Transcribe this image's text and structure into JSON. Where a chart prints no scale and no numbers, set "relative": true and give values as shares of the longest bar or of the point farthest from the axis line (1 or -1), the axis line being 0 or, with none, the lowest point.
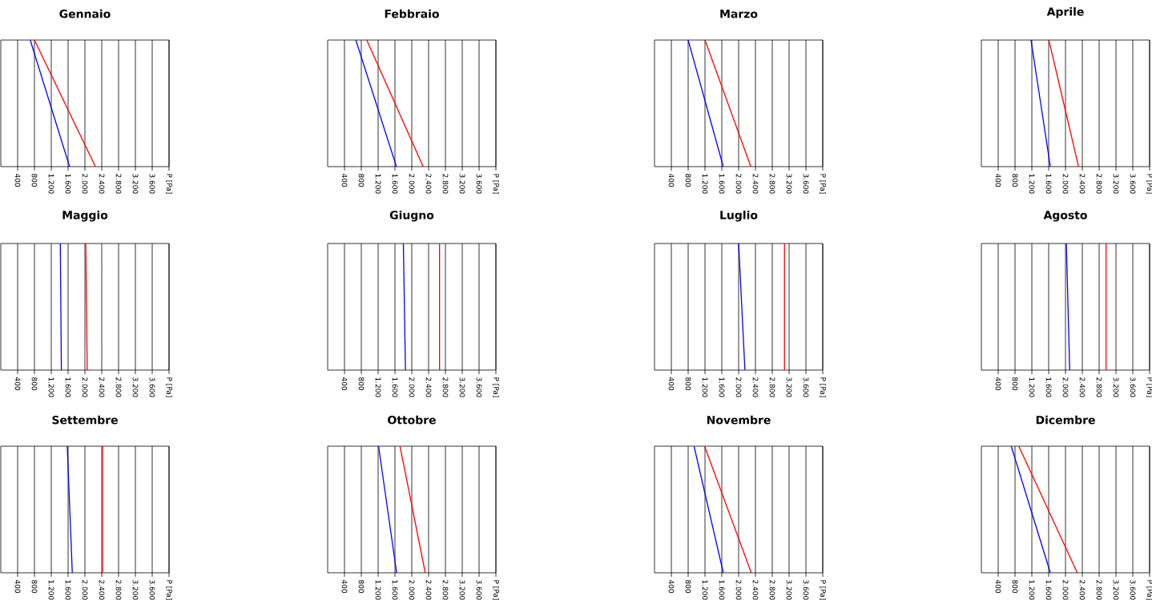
{
  "chart_data": [
    {
      "type": "line",
      "title": "Gennaio",
      "relative": true,
      "xlim": [
        0,
        4000
      ],
      "grid": "x",
      "tick_labels": "x",
      "xticks": [
        {
          "value": 400,
          "label": "400"
        },
        {
          "value": 800,
          "label": "800"
        },
        {
          "value": 1200,
          "label": "1.200"
        },
        {
          "value": 1600,
          "label": "1.600"
        },
        {
          "value": 2000,
          "label": "2.000"
        },
        {
          "value": 2400,
          "label": "2.400"
        },
        {
          "value": 2800,
          "label": "2.800"
        },
        {
          "value": 3200,
          "label": "3.200"
        },
        {
          "value": 3600,
          "label": "3.600"
        },
        {
          "value": 4000,
          "label": "P [Pa]"
        }
      ],
      "series": [
        {
          "color": "#0000ff",
          "x": [
            700,
            1635
          ],
          "values": [
            1,
            0
          ]
        },
        {
          "color": "#ff0000",
          "x": [
            800,
            2250
          ],
          "values": [
            1,
            0
          ]
        }
      ]
    },
    {
      "type": "line",
      "title": "Febbraio",
      "relative": true,
      "xlim": [
        0,
        4000
      ],
      "grid": "x",
      "tick_labels": "x",
      "xticks": [
        {
          "value": 400,
          "label": "400"
        },
        {
          "value": 800,
          "label": "800"
        },
        {
          "value": 1200,
          "label": "1.200"
        },
        {
          "value": 1600,
          "label": "1.600"
        },
        {
          "value": 2000,
          "label": "2.000"
        },
        {
          "value": 2400,
          "label": "2.400"
        },
        {
          "value": 2800,
          "label": "2.800"
        },
        {
          "value": 3200,
          "label": "3.200"
        },
        {
          "value": 3600,
          "label": "3.600"
        },
        {
          "value": 4000,
          "label": "P [Pa]"
        }
      ],
      "series": [
        {
          "color": "#0000ff",
          "x": [
            670,
            1635
          ],
          "values": [
            1,
            0
          ]
        },
        {
          "color": "#ff0000",
          "x": [
            930,
            2270
          ],
          "values": [
            1,
            0
          ]
        }
      ]
    },
    {
      "type": "line",
      "title": "Marzo",
      "relative": true,
      "xlim": [
        0,
        4000
      ],
      "grid": "x",
      "tick_labels": "x",
      "xticks": [
        {
          "value": 400,
          "label": "400"
        },
        {
          "value": 800,
          "label": "800"
        },
        {
          "value": 1200,
          "label": "1.200"
        },
        {
          "value": 1600,
          "label": "1.600"
        },
        {
          "value": 2000,
          "label": "2.000"
        },
        {
          "value": 2400,
          "label": "2.400"
        },
        {
          "value": 2800,
          "label": "2.800"
        },
        {
          "value": 3200,
          "label": "3.200"
        },
        {
          "value": 3600,
          "label": "3.600"
        },
        {
          "value": 4000,
          "label": "P [Pa]"
        }
      ],
      "series": [
        {
          "color": "#0000ff",
          "x": [
            800,
            1635
          ],
          "values": [
            1,
            0
          ]
        },
        {
          "color": "#ff0000",
          "x": [
            1200,
            2290
          ],
          "values": [
            1,
            0
          ]
        }
      ]
    },
    {
      "type": "line",
      "title": "Aprile",
      "relative": true,
      "xlim": [
        0,
        4000
      ],
      "grid": "x",
      "tick_labels": "x",
      "xticks": [
        {
          "value": 400,
          "label": "400"
        },
        {
          "value": 800,
          "label": "800"
        },
        {
          "value": 1200,
          "label": "1.200"
        },
        {
          "value": 1600,
          "label": "1.600"
        },
        {
          "value": 2000,
          "label": "2.000"
        },
        {
          "value": 2400,
          "label": "2.400"
        },
        {
          "value": 2800,
          "label": "2.800"
        },
        {
          "value": 3200,
          "label": "3.200"
        },
        {
          "value": 3600,
          "label": "3.600"
        },
        {
          "value": 4000,
          "label": "P [Pa]"
        }
      ],
      "series": [
        {
          "color": "#0000ff",
          "x": [
            1180,
            1640
          ],
          "values": [
            1,
            0
          ]
        },
        {
          "color": "#ff0000",
          "x": [
            1605,
            2310
          ],
          "values": [
            1,
            0
          ]
        }
      ]
    },
    {
      "type": "line",
      "title": "Maggio",
      "relative": true,
      "xlim": [
        0,
        4000
      ],
      "grid": "x",
      "tick_labels": "x",
      "xticks": [
        {
          "value": 400,
          "label": "400"
        },
        {
          "value": 800,
          "label": "800"
        },
        {
          "value": 1200,
          "label": "1.200"
        },
        {
          "value": 1600,
          "label": "1.600"
        },
        {
          "value": 2000,
          "label": "2.000"
        },
        {
          "value": 2400,
          "label": "2.400"
        },
        {
          "value": 2800,
          "label": "2.800"
        },
        {
          "value": 3200,
          "label": "3.200"
        },
        {
          "value": 3600,
          "label": "3.600"
        },
        {
          "value": 4000,
          "label": "P [Pa]"
        }
      ],
      "series": [
        {
          "color": "#0000ff",
          "x": [
            1415,
            1440
          ],
          "values": [
            1,
            0
          ]
        },
        {
          "color": "#ff0000",
          "x": [
            2020,
            2055
          ],
          "values": [
            1,
            0
          ]
        }
      ]
    },
    {
      "type": "line",
      "title": "Giugno",
      "relative": true,
      "xlim": [
        0,
        4000
      ],
      "grid": "x",
      "tick_labels": "x",
      "xticks": [
        {
          "value": 400,
          "label": "400"
        },
        {
          "value": 800,
          "label": "800"
        },
        {
          "value": 1200,
          "label": "1.200"
        },
        {
          "value": 1600,
          "label": "1.600"
        },
        {
          "value": 2000,
          "label": "2.000"
        },
        {
          "value": 2400,
          "label": "2.400"
        },
        {
          "value": 2800,
          "label": "2.800"
        },
        {
          "value": 3200,
          "label": "3.200"
        },
        {
          "value": 3600,
          "label": "3.600"
        },
        {
          "value": 4000,
          "label": "P [Pa]"
        }
      ],
      "series": [
        {
          "color": "#0000ff",
          "x": [
            1800,
            1850
          ],
          "values": [
            1,
            0
          ]
        },
        {
          "color": "#ff0000",
          "x": [
            2660,
            2660
          ],
          "values": [
            1,
            0
          ]
        }
      ]
    },
    {
      "type": "line",
      "title": "Luglio",
      "relative": true,
      "xlim": [
        0,
        4000
      ],
      "grid": "x",
      "tick_labels": "x",
      "xticks": [
        {
          "value": 400,
          "label": "400"
        },
        {
          "value": 800,
          "label": "800"
        },
        {
          "value": 1200,
          "label": "1.200"
        },
        {
          "value": 1600,
          "label": "1.600"
        },
        {
          "value": 2000,
          "label": "2.000"
        },
        {
          "value": 2400,
          "label": "2.400"
        },
        {
          "value": 2800,
          "label": "2.800"
        },
        {
          "value": 3200,
          "label": "3.200"
        },
        {
          "value": 3600,
          "label": "3.600"
        },
        {
          "value": 4000,
          "label": "P [Pa]"
        }
      ],
      "series": [
        {
          "color": "#0000ff",
          "x": [
            2000,
            2150
          ],
          "values": [
            1,
            0
          ]
        },
        {
          "color": "#ff0000",
          "x": [
            3090,
            3090
          ],
          "values": [
            1,
            0
          ]
        }
      ]
    },
    {
      "type": "line",
      "title": "Agosto",
      "relative": true,
      "xlim": [
        0,
        4000
      ],
      "grid": "x",
      "tick_labels": "x",
      "xticks": [
        {
          "value": 400,
          "label": "400"
        },
        {
          "value": 800,
          "label": "800"
        },
        {
          "value": 1200,
          "label": "1.200"
        },
        {
          "value": 1600,
          "label": "1.600"
        },
        {
          "value": 2000,
          "label": "2.000"
        },
        {
          "value": 2400,
          "label": "2.400"
        },
        {
          "value": 2800,
          "label": "2.800"
        },
        {
          "value": 3200,
          "label": "3.200"
        },
        {
          "value": 3600,
          "label": "3.600"
        },
        {
          "value": 4000,
          "label": "P [Pa]"
        }
      ],
      "series": [
        {
          "color": "#0000ff",
          "x": [
            2020,
            2100
          ],
          "values": [
            1,
            0
          ]
        },
        {
          "color": "#ff0000",
          "x": [
            2965,
            2965
          ],
          "values": [
            1,
            0
          ]
        }
      ]
    },
    {
      "type": "line",
      "title": "Settembre",
      "relative": true,
      "xlim": [
        0,
        4000
      ],
      "grid": "x",
      "tick_labels": "x",
      "xticks": [
        {
          "value": 400,
          "label": "400"
        },
        {
          "value": 800,
          "label": "800"
        },
        {
          "value": 1200,
          "label": "1.200"
        },
        {
          "value": 1600,
          "label": "1.600"
        },
        {
          "value": 2000,
          "label": "2.000"
        },
        {
          "value": 2400,
          "label": "2.400"
        },
        {
          "value": 2800,
          "label": "2.800"
        },
        {
          "value": 3200,
          "label": "3.200"
        },
        {
          "value": 3600,
          "label": "3.600"
        },
        {
          "value": 4000,
          "label": "P [Pa]"
        }
      ],
      "series": [
        {
          "color": "#0000ff",
          "x": [
            1580,
            1700
          ],
          "values": [
            1,
            0
          ]
        },
        {
          "color": "#ff0000",
          "x": [
            2420,
            2420
          ],
          "values": [
            1,
            0
          ]
        }
      ]
    },
    {
      "type": "line",
      "title": "Ottobre",
      "relative": true,
      "xlim": [
        0,
        4000
      ],
      "grid": "x",
      "tick_labels": "x",
      "xticks": [
        {
          "value": 400,
          "label": "400"
        },
        {
          "value": 800,
          "label": "800"
        },
        {
          "value": 1200,
          "label": "1.200"
        },
        {
          "value": 1600,
          "label": "1.600"
        },
        {
          "value": 2000,
          "label": "2.000"
        },
        {
          "value": 2400,
          "label": "2.400"
        },
        {
          "value": 2800,
          "label": "2.800"
        },
        {
          "value": 3200,
          "label": "3.200"
        },
        {
          "value": 3600,
          "label": "3.600"
        },
        {
          "value": 4000,
          "label": "P [Pa]"
        }
      ],
      "series": [
        {
          "color": "#0000ff",
          "x": [
            1210,
            1640
          ],
          "values": [
            1,
            0
          ]
        },
        {
          "color": "#ff0000",
          "x": [
            1720,
            2320
          ],
          "values": [
            1,
            0
          ]
        }
      ]
    },
    {
      "type": "line",
      "title": "Novembre",
      "relative": true,
      "xlim": [
        0,
        4000
      ],
      "grid": "x",
      "tick_labels": "x",
      "xticks": [
        {
          "value": 400,
          "label": "400"
        },
        {
          "value": 800,
          "label": "800"
        },
        {
          "value": 1200,
          "label": "1.200"
        },
        {
          "value": 1600,
          "label": "1.600"
        },
        {
          "value": 2000,
          "label": "2.000"
        },
        {
          "value": 2400,
          "label": "2.400"
        },
        {
          "value": 2800,
          "label": "2.800"
        },
        {
          "value": 3200,
          "label": "3.200"
        },
        {
          "value": 3600,
          "label": "3.600"
        },
        {
          "value": 4000,
          "label": "P [Pa]"
        }
      ],
      "series": [
        {
          "color": "#0000ff",
          "x": [
            940,
            1635
          ],
          "values": [
            1,
            0
          ]
        },
        {
          "color": "#ff0000",
          "x": [
            1190,
            2300
          ],
          "values": [
            1,
            0
          ]
        }
      ]
    },
    {
      "type": "line",
      "title": "Dicembre",
      "relative": true,
      "xlim": [
        0,
        4000
      ],
      "grid": "x",
      "tick_labels": "x",
      "xticks": [
        {
          "value": 400,
          "label": "400"
        },
        {
          "value": 800,
          "label": "800"
        },
        {
          "value": 1200,
          "label": "1.200"
        },
        {
          "value": 1600,
          "label": "1.600"
        },
        {
          "value": 2000,
          "label": "2.000"
        },
        {
          "value": 2400,
          "label": "2.400"
        },
        {
          "value": 2800,
          "label": "2.800"
        },
        {
          "value": 3200,
          "label": "3.200"
        },
        {
          "value": 3600,
          "label": "3.600"
        },
        {
          "value": 4000,
          "label": "P [Pa]"
        }
      ],
      "series": [
        {
          "color": "#0000ff",
          "x": [
            710,
            1640
          ],
          "values": [
            1,
            0
          ]
        },
        {
          "color": "#ff0000",
          "x": [
            890,
            2280
          ],
          "values": [
            1,
            0
          ]
        }
      ]
    }
  ]
}
